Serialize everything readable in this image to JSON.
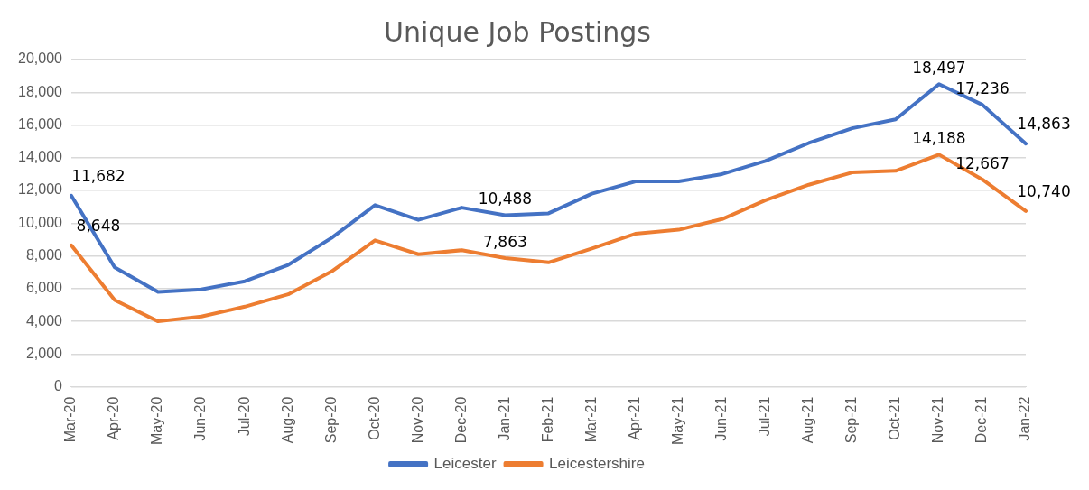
{
  "chart_data": {
    "type": "line",
    "title": "Unique Job Postings",
    "categories": [
      "Mar-20",
      "Apr-20",
      "May-20",
      "Jun-20",
      "Jul-20",
      "Aug-20",
      "Sep-20",
      "Oct-20",
      "Nov-20",
      "Dec-20",
      "Jan-21",
      "Feb-21",
      "Mar-21",
      "Apr-21",
      "May-21",
      "Jun-21",
      "Jul-21",
      "Aug-21",
      "Sep-21",
      "Oct-21",
      "Nov-21",
      "Dec-21",
      "Jan-22"
    ],
    "series": [
      {
        "name": "Leicester",
        "color": "#4472c4",
        "values": [
          11682,
          7300,
          5800,
          5950,
          6450,
          7450,
          9100,
          11100,
          10200,
          10950,
          10488,
          10600,
          11800,
          12550,
          12550,
          13000,
          13800,
          14900,
          15800,
          16350,
          18497,
          17236,
          14863
        ],
        "value_labels": [
          "11,682",
          null,
          null,
          null,
          null,
          null,
          null,
          null,
          null,
          null,
          "10,488",
          null,
          null,
          null,
          null,
          null,
          null,
          null,
          null,
          null,
          "18,497",
          "17,236",
          "14,863"
        ]
      },
      {
        "name": "Leicestershire",
        "color": "#ed7d31",
        "values": [
          8648,
          5300,
          4000,
          4300,
          4900,
          5650,
          7050,
          8950,
          8100,
          8350,
          7863,
          7600,
          8450,
          9350,
          9600,
          10250,
          11400,
          12350,
          13100,
          13200,
          14188,
          12667,
          10740
        ],
        "value_labels": [
          "8,648",
          null,
          null,
          null,
          null,
          null,
          null,
          null,
          null,
          null,
          "7,863",
          null,
          null,
          null,
          null,
          null,
          null,
          null,
          null,
          null,
          "14,188",
          "12,667",
          "10,740"
        ]
      }
    ],
    "ylim": [
      0,
      20000
    ],
    "yticks": [
      0,
      {
        "value": 2000,
        "label": "2,000"
      },
      {
        "value": 4000,
        "label": "4,000"
      },
      {
        "value": 6000,
        "label": "6,000"
      },
      {
        "value": 8000,
        "label": "8,000"
      },
      {
        "value": 10000,
        "label": "10,000"
      },
      {
        "value": 12000,
        "label": "12,000"
      },
      {
        "value": 14000,
        "label": "14,000"
      },
      {
        "value": 16000,
        "label": "16,000"
      },
      {
        "value": 18000,
        "label": "18,000"
      },
      {
        "value": 20000,
        "label": "20,000"
      }
    ],
    "grid": "y",
    "legend": "bottom",
    "marker": "none",
    "line_style": "solid"
  }
}
